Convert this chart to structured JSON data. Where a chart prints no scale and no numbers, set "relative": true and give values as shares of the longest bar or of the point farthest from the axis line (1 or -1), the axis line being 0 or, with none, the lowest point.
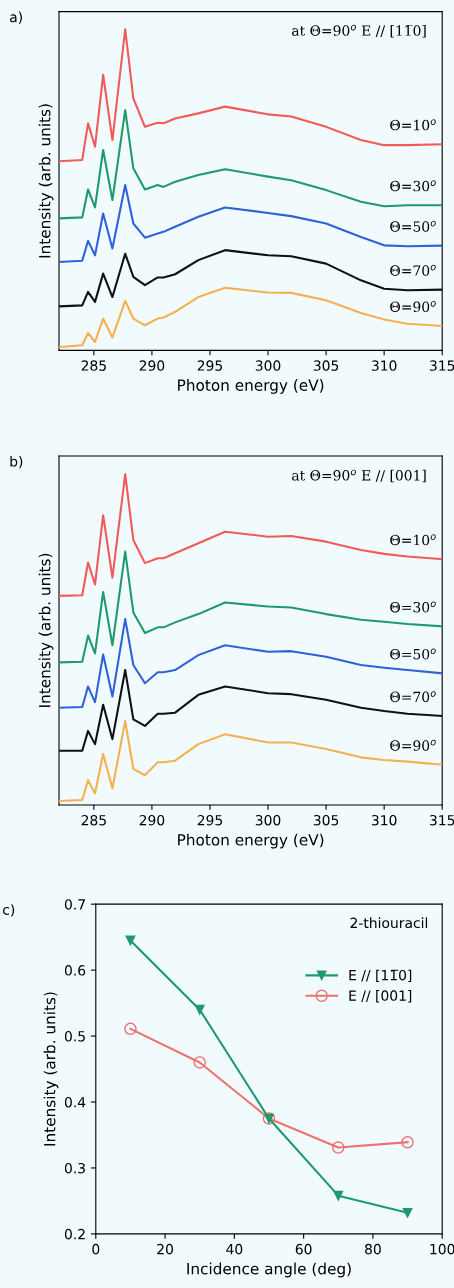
{
  "chart_data": [
    {
      "type": "line",
      "title": "a)",
      "xlabel": "Photon energy (eV)",
      "ylabel": "Intensity (arb. units)",
      "relative": true,
      "xlim": [
        282,
        315
      ],
      "xticks": [
        285,
        290,
        295,
        300,
        305,
        310,
        315
      ],
      "annotations": [
        "at Θ=90$^{o}$ E // [11̅0]"
      ],
      "legend": false,
      "grid": false,
      "x": [
        282,
        284,
        284.5,
        285.1,
        285.8,
        286.6,
        287.7,
        288.4,
        289.4,
        290.5,
        291,
        292,
        294,
        296.3,
        300,
        302,
        305,
        308,
        310,
        312,
        315
      ],
      "series": [
        {
          "name": "Θ=10$^{o}$",
          "color": "#f25a5a",
          "values": [
            0.589,
            0.593,
            0.707,
            0.634,
            0.858,
            0.655,
            1,
            0.785,
            0.696,
            0.709,
            0.707,
            0.722,
            0.738,
            0.759,
            0.735,
            0.728,
            0.696,
            0.655,
            0.639,
            0.639,
            0.642
          ]
        },
        {
          "name": "Θ=30$^{o}$",
          "color": "#1e9a6c",
          "values": [
            0.411,
            0.414,
            0.501,
            0.445,
            0.624,
            0.468,
            0.748,
            0.567,
            0.501,
            0.515,
            0.509,
            0.525,
            0.546,
            0.564,
            0.541,
            0.53,
            0.499,
            0.463,
            0.449,
            0.452,
            0.452
          ]
        },
        {
          "name": "Θ=50$^{o}$",
          "color": "#2f62d8",
          "values": [
            0.275,
            0.279,
            0.341,
            0.296,
            0.426,
            0.317,
            0.515,
            0.395,
            0.351,
            0.364,
            0.369,
            0.385,
            0.416,
            0.445,
            0.428,
            0.418,
            0.395,
            0.353,
            0.327,
            0.324,
            0.326
          ]
        },
        {
          "name": "Θ=70$^{o}$",
          "color": "#111111",
          "values": [
            0.137,
            0.14,
            0.182,
            0.151,
            0.239,
            0.166,
            0.301,
            0.229,
            0.203,
            0.227,
            0.227,
            0.237,
            0.281,
            0.312,
            0.296,
            0.293,
            0.27,
            0.218,
            0.192,
            0.187,
            0.189
          ]
        },
        {
          "name": "Θ=90$^{o}$",
          "color": "#f5b050",
          "values": [
            0.01,
            0.016,
            0.054,
            0.026,
            0.099,
            0.04,
            0.154,
            0.099,
            0.078,
            0.099,
            0.102,
            0.12,
            0.166,
            0.195,
            0.18,
            0.179,
            0.156,
            0.116,
            0.096,
            0.083,
            0.076
          ]
        }
      ]
    },
    {
      "type": "line",
      "title": "b)",
      "xlabel": "Photon energy (eV)",
      "ylabel": "Intensity (arb. units)",
      "relative": true,
      "xlim": [
        282,
        315
      ],
      "xticks": [
        285,
        290,
        295,
        300,
        305,
        310,
        315
      ],
      "annotations": [
        "at Θ=90$^{o}$ E // [001]"
      ],
      "legend": false,
      "grid": false,
      "x": [
        282,
        284,
        284.5,
        285.1,
        285.8,
        286.6,
        287.7,
        288.4,
        289.4,
        290.5,
        291,
        292,
        294,
        296.3,
        300,
        302,
        305,
        308,
        310,
        312,
        315
      ],
      "series": [
        {
          "name": "Θ=10$^{o}$",
          "color": "#f25a5a",
          "values": [
            0.632,
            0.634,
            0.733,
            0.667,
            0.876,
            0.687,
            1,
            0.801,
            0.731,
            0.746,
            0.746,
            0.761,
            0.791,
            0.826,
            0.811,
            0.813,
            0.796,
            0.771,
            0.759,
            0.751,
            0.743
          ]
        },
        {
          "name": "Θ=30$^{o}$",
          "color": "#1e9a6c",
          "values": [
            0.431,
            0.433,
            0.512,
            0.458,
            0.644,
            0.483,
            0.766,
            0.582,
            0.52,
            0.537,
            0.537,
            0.552,
            0.577,
            0.612,
            0.6,
            0.597,
            0.577,
            0.56,
            0.554,
            0.547,
            0.54
          ]
        },
        {
          "name": "Θ=50$^{o}$",
          "color": "#2f62d8",
          "values": [
            0.294,
            0.296,
            0.358,
            0.311,
            0.455,
            0.328,
            0.562,
            0.423,
            0.368,
            0.401,
            0.401,
            0.408,
            0.453,
            0.483,
            0.463,
            0.465,
            0.448,
            0.423,
            0.415,
            0.408,
            0.398
          ]
        },
        {
          "name": "Θ=70$^{o}$",
          "color": "#111111",
          "values": [
            0.164,
            0.164,
            0.224,
            0.184,
            0.303,
            0.199,
            0.408,
            0.259,
            0.239,
            0.276,
            0.276,
            0.279,
            0.333,
            0.358,
            0.338,
            0.335,
            0.318,
            0.294,
            0.284,
            0.276,
            0.269
          ]
        },
        {
          "name": "Θ=90$^{o}$",
          "color": "#f5b050",
          "values": [
            0.012,
            0.015,
            0.075,
            0.035,
            0.154,
            0.05,
            0.254,
            0.109,
            0.09,
            0.129,
            0.129,
            0.134,
            0.184,
            0.214,
            0.189,
            0.189,
            0.169,
            0.144,
            0.136,
            0.131,
            0.122
          ]
        }
      ]
    },
    {
      "type": "line",
      "title": "c)",
      "xlabel": "Incidence angle (deg)",
      "ylabel": "Intensity (arb. units)",
      "xlim": [
        0,
        100
      ],
      "xticks": [
        0,
        20,
        40,
        60,
        80,
        100
      ],
      "ylim": [
        0.2,
        0.7
      ],
      "yticks": [
        0.2,
        0.3,
        0.4,
        0.5,
        0.6,
        0.7
      ],
      "annotations": [
        "2-thiouracil"
      ],
      "legend": "right",
      "grid": false,
      "x": [
        10,
        30,
        50,
        70,
        90
      ],
      "series": [
        {
          "name": "E // [11̅0]",
          "color": "#1e9a6c",
          "marker": "triangle",
          "values": [
            0.645,
            0.54,
            0.375,
            0.258,
            0.232
          ]
        },
        {
          "name": "E // [001]",
          "color": "#f07070",
          "marker": "circle",
          "values": [
            0.511,
            0.46,
            0.375,
            0.331,
            0.339
          ]
        }
      ]
    }
  ]
}
